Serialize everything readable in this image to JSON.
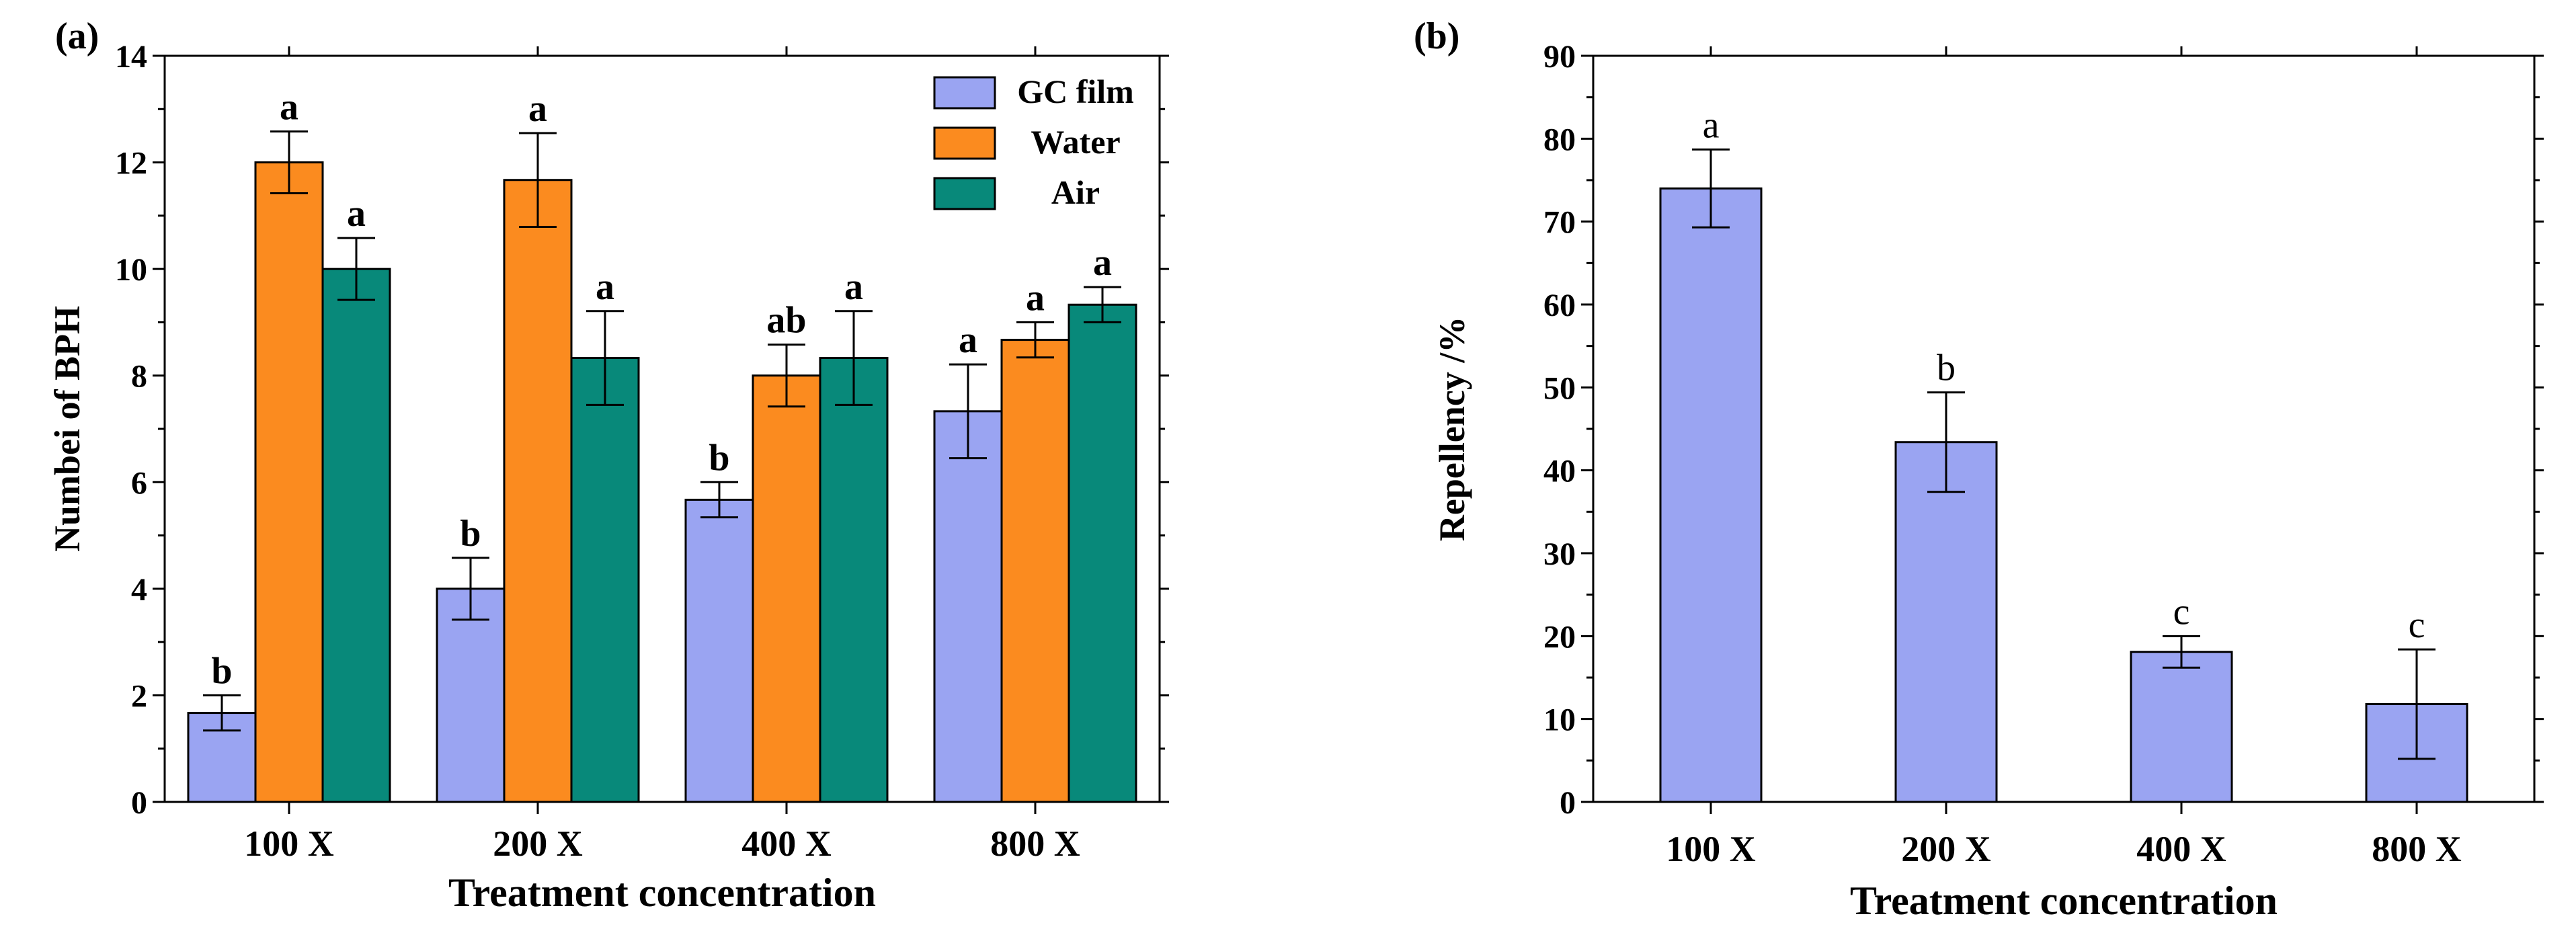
{
  "chart_data": [
    {
      "panel_label": "(a)",
      "type": "bar",
      "xlabel": "Treatment concentration",
      "ylabel": "Numbei of BPH",
      "ylim": [
        0,
        14
      ],
      "yticks": [
        0,
        2,
        4,
        6,
        8,
        10,
        12,
        14
      ],
      "categories": [
        "100 X",
        "200 X",
        "400 X",
        "800 X"
      ],
      "legend_position": "top-right",
      "series": [
        {
          "name": "GC film",
          "color": "#9aa4f2",
          "values": [
            1.67,
            4.0,
            5.67,
            7.33
          ],
          "errors": [
            0.33,
            0.58,
            0.33,
            0.88
          ],
          "letters": [
            "b",
            "b",
            "b",
            "a"
          ]
        },
        {
          "name": "Water",
          "color": "#fb8b1f",
          "values": [
            12.0,
            11.67,
            8.0,
            8.67
          ],
          "errors": [
            0.58,
            0.88,
            0.58,
            0.33
          ],
          "letters": [
            "a",
            "a",
            "ab",
            "a"
          ]
        },
        {
          "name": "Air",
          "color": "#08897a",
          "values": [
            10.0,
            8.33,
            8.33,
            9.33
          ],
          "errors": [
            0.58,
            0.88,
            0.88,
            0.33
          ],
          "letters": [
            "a",
            "a",
            "a",
            "a"
          ]
        }
      ]
    },
    {
      "panel_label": "(b)",
      "type": "bar",
      "xlabel": "Treatment concentration",
      "ylabel": "Repellency /%",
      "ylim": [
        0,
        90
      ],
      "yticks": [
        0,
        10,
        20,
        30,
        40,
        50,
        60,
        70,
        80,
        90
      ],
      "categories": [
        "100 X",
        "200 X",
        "400 X",
        "800 X"
      ],
      "series": [
        {
          "name": "Repellency",
          "color": "#9aa4f2",
          "values": [
            74.0,
            43.4,
            18.1,
            11.8
          ],
          "errors": [
            4.7,
            6.0,
            1.9,
            6.6
          ],
          "letters": [
            "a",
            "b",
            "c",
            "c"
          ]
        }
      ]
    }
  ]
}
